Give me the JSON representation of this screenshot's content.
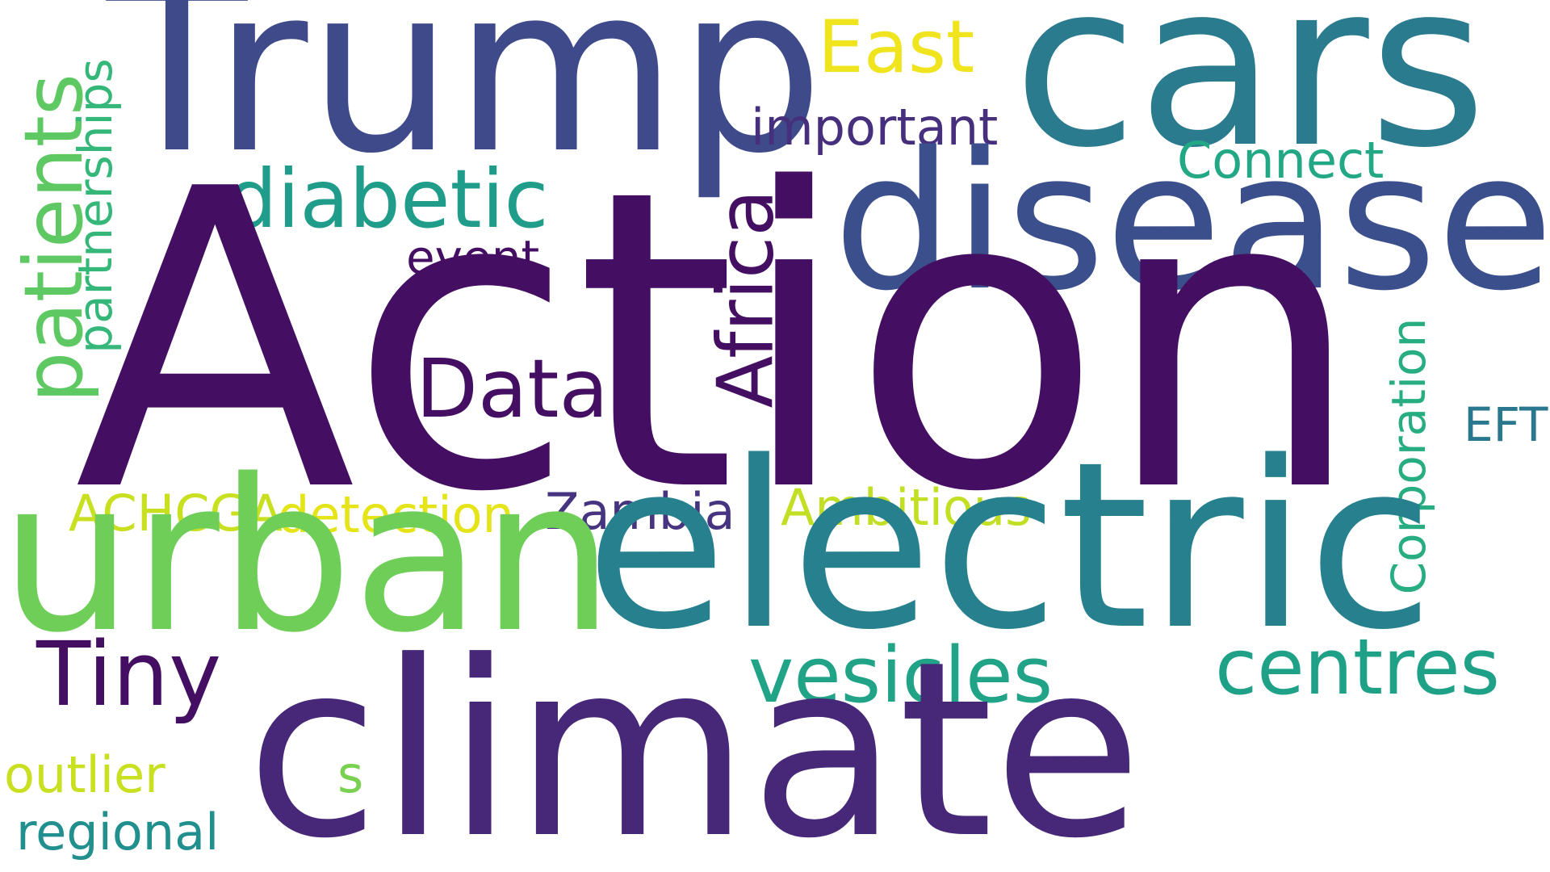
{
  "colors": {
    "background": "#ffffff"
  },
  "words": {
    "action": {
      "text": "Action",
      "color": "#440f62"
    },
    "trump": {
      "text": "Trump",
      "color": "#3e4a89"
    },
    "cars": {
      "text": "cars",
      "color": "#2a7b8e"
    },
    "disease": {
      "text": "disease",
      "color": "#3b4f8c"
    },
    "urban": {
      "text": "urban",
      "color": "#6fce58"
    },
    "electric": {
      "text": "electric",
      "color": "#26808e"
    },
    "climate": {
      "text": "climate",
      "color": "#472878"
    },
    "patients": {
      "text": "patients",
      "color": "#5ec962"
    },
    "partnerships": {
      "text": "partnerships",
      "color": "#35b779"
    },
    "diabetic": {
      "text": "diabetic",
      "color": "#1f9d8a"
    },
    "east": {
      "text": "East",
      "color": "#f0e41f"
    },
    "important": {
      "text": "important",
      "color": "#462f7c"
    },
    "connect": {
      "text": "Connect",
      "color": "#22a884"
    },
    "event": {
      "text": "event",
      "color": "#440f62"
    },
    "africa": {
      "text": "Africa",
      "color": "#440f62"
    },
    "data": {
      "text": "Data",
      "color": "#440f62"
    },
    "corporation": {
      "text": "Corporation",
      "color": "#27ad81"
    },
    "eft": {
      "text": "EFT",
      "color": "#2a788e"
    },
    "achcga": {
      "text": "ACHCGA",
      "color": "#c8e020"
    },
    "detection": {
      "text": "detection",
      "color": "#e5e419"
    },
    "zambia": {
      "text": "Zambia",
      "color": "#463480"
    },
    "ambitious": {
      "text": "Ambitious",
      "color": "#c2df23"
    },
    "tiny": {
      "text": "Tiny",
      "color": "#440f62"
    },
    "vesicles": {
      "text": "vesicles",
      "color": "#20a386"
    },
    "centres": {
      "text": "centres",
      "color": "#1fa188"
    },
    "outlier": {
      "text": "outlier",
      "color": "#c8e020"
    },
    "s": {
      "text": "s",
      "color": "#7ad151"
    },
    "regional": {
      "text": "regional",
      "color": "#218f8d"
    }
  }
}
